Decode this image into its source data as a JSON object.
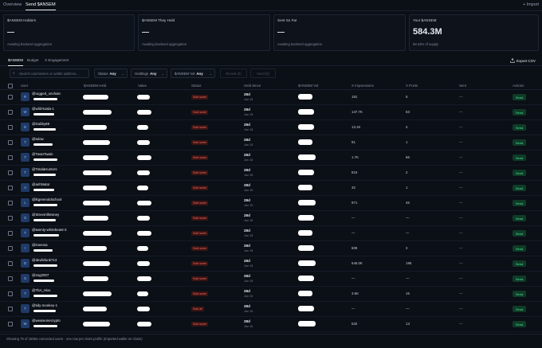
{
  "nav": {
    "tabs": [
      "Overview",
      "Send $ANSEM"
    ],
    "active_tab": 1,
    "import_label": "Import"
  },
  "cards": [
    {
      "title": "$ANSEM Holders",
      "value": "—",
      "sub": "Awaiting backend aggregation"
    },
    {
      "title": "$ANSEM They Hold",
      "value": "—",
      "sub": "Awaiting backend aggregation"
    },
    {
      "title": "Sent So Far",
      "value": "—",
      "sub": "Awaiting backend aggregation"
    },
    {
      "title": "Your $ANSEM",
      "value": "584.3M",
      "sub": "58.43% of supply"
    }
  ],
  "subtabs": [
    "$ANSEM",
    "Budget",
    "X Engagement"
  ],
  "active_subtab": 0,
  "export_label": "Export CSV",
  "filters": {
    "search_placeholder": "Search usernames or wallet address...",
    "status_label": "Status",
    "status_value": "Any",
    "holdings_label": "Holdings",
    "holdings_value": "Any",
    "vol_label": "$ANSEM Vol",
    "vol_value": "Any",
    "btn1_label": "Reveal (0)",
    "btn2_label": "Send (0)"
  },
  "columns": [
    "User",
    "$ANSEM Held",
    "Value",
    "Status",
    "Held Since",
    "$ANSEM Vol",
    "X Impressions",
    "X Posts",
    "Sent",
    "Actions"
  ],
  "rows": [
    {
      "initial": "R",
      "username": "@rugged_onchain",
      "status": "Sold some",
      "held": "28d",
      "since": "Jun 15",
      "impressions": "181",
      "posts": "5",
      "sent": "—",
      "action": "Send"
    },
    {
      "initial": "W",
      "username": "@wild-koala-1",
      "status": "Sold some",
      "held": "28d",
      "since": "Jun 15",
      "impressions": "147.7K",
      "posts": "53",
      "sent": "—",
      "action": "Send"
    },
    {
      "initial": "D",
      "username": "@Dubby69",
      "status": "Sold some",
      "held": "28d",
      "since": "Jun 15",
      "impressions": "13.1K",
      "posts": "4",
      "sent": "—",
      "action": "Send"
    },
    {
      "initial": "T",
      "username": "@tulow",
      "status": "Sold some",
      "held": "28d",
      "since": "Jun 15",
      "impressions": "91",
      "posts": "1",
      "sent": "—",
      "action": "Send"
    },
    {
      "initial": "T",
      "username": "@TwanTwain",
      "status": "Sold some",
      "held": "28d",
      "since": "Jun 15",
      "impressions": "1.7K",
      "posts": "66",
      "sent": "—",
      "action": "Send"
    },
    {
      "initial": "T",
      "username": "@TotalaHunters",
      "status": "Sold some",
      "held": "28d",
      "since": "Jun 15",
      "impressions": "815",
      "posts": "2",
      "sent": "—",
      "action": "Send"
    },
    {
      "initial": "A",
      "username": "@anhNator",
      "status": "Sold some",
      "held": "28d",
      "since": "Jun 15",
      "impressions": "32",
      "posts": "1",
      "sent": "—",
      "action": "Send"
    },
    {
      "initial": "L",
      "username": "@litgreenoldschool",
      "status": "Sold some",
      "held": "28d",
      "since": "Jun 15",
      "impressions": "971",
      "posts": "46",
      "sent": "—",
      "action": "Send"
    },
    {
      "initial": "S",
      "username": "@StreetAllMoney",
      "status": "Sold some",
      "held": "28d",
      "since": "Jun 15",
      "impressions": "—",
      "posts": "—",
      "sent": "—",
      "action": "Send"
    },
    {
      "initial": "T",
      "username": "@twenty-whitebeast-3",
      "status": "Sold some",
      "held": "28d",
      "since": "Jun 15",
      "impressions": "—",
      "posts": "—",
      "sent": "—",
      "action": "Send"
    },
    {
      "initial": "I",
      "username": "@insensa",
      "status": "Sold some",
      "held": "28d",
      "since": "Jun 15",
      "impressions": "609",
      "posts": "2",
      "sent": "—",
      "action": "Send"
    },
    {
      "initial": "D",
      "username": "@devilsfunk713",
      "status": "Sold some",
      "held": "28d",
      "since": "Jun 15",
      "impressions": "546.0K",
      "posts": "195",
      "sent": "—",
      "action": "Send"
    },
    {
      "initial": "S",
      "username": "@sng2007",
      "status": "Sold some",
      "held": "28d",
      "since": "Jun 15",
      "impressions": "—",
      "posts": "—",
      "sent": "—",
      "action": "Send"
    },
    {
      "initial": "T",
      "username": "@TbA_Hixx",
      "status": "Sold some",
      "held": "28d",
      "since": "Jun 15",
      "impressions": "3.6K",
      "posts": "15",
      "sent": "—",
      "action": "Send"
    },
    {
      "initial": "T",
      "username": "@tidy-monkey-1",
      "status": "Sold all",
      "held": "28d",
      "since": "Jun 15",
      "impressions": "—",
      "posts": "—",
      "sent": "—",
      "action": "Send"
    },
    {
      "initial": "W",
      "username": "@weareonecrypto",
      "status": "Sold some",
      "held": "28d",
      "since": "Jun 15",
      "impressions": "532",
      "posts": "13",
      "sent": "—",
      "action": "Send"
    }
  ],
  "footer": "Showing 75 of 15954 connected users · one row per claim profile (Imported wallet on Claim)"
}
